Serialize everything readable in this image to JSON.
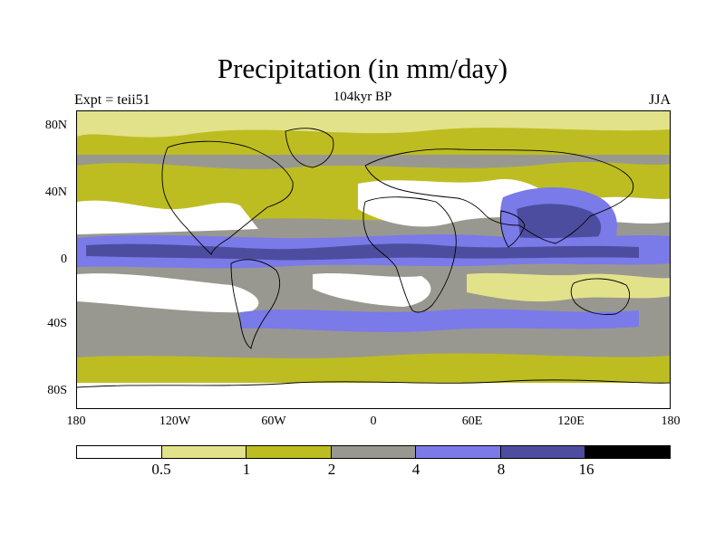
{
  "title": "Precipitation (in mm/day)",
  "subtitle": "104kyr BP",
  "left_label": "Expt = teii51",
  "right_label": "JJA",
  "y_ticks": [
    "80N",
    "40N",
    "0",
    "40S",
    "80S"
  ],
  "x_ticks": [
    "180",
    "120W",
    "60W",
    "0",
    "60E",
    "120E",
    "180"
  ],
  "colorbar": {
    "labels": [
      "0.5",
      "1",
      "2",
      "4",
      "8",
      "16"
    ],
    "colors": [
      "#ffffff",
      "#e2e28a",
      "#bdbd22",
      "#999890",
      "#7a7ae8",
      "#4d4da0",
      "#000000"
    ]
  },
  "colors": {
    "white": "#ffffff",
    "light_yellow": "#e2e28a",
    "olive": "#bdbd22",
    "gray": "#999890",
    "light_blue": "#7a7ae8",
    "dark_blue": "#4d4da0",
    "black": "#000000"
  }
}
